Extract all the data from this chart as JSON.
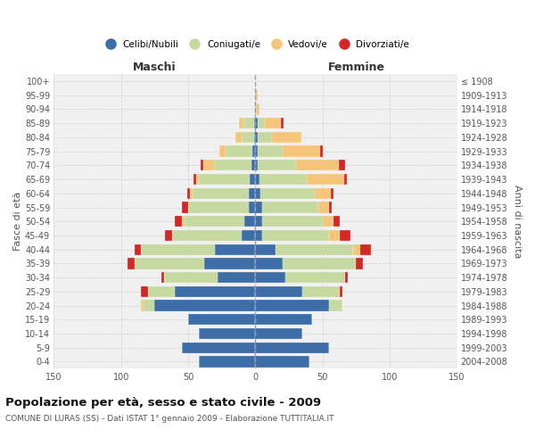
{
  "age_groups": [
    "0-4",
    "5-9",
    "10-14",
    "15-19",
    "20-24",
    "25-29",
    "30-34",
    "35-39",
    "40-44",
    "45-49",
    "50-54",
    "55-59",
    "60-64",
    "65-69",
    "70-74",
    "75-79",
    "80-84",
    "85-89",
    "90-94",
    "95-99",
    "100+"
  ],
  "birth_years": [
    "2004-2008",
    "1999-2003",
    "1994-1998",
    "1989-1993",
    "1984-1988",
    "1979-1983",
    "1974-1978",
    "1969-1973",
    "1964-1968",
    "1959-1963",
    "1954-1958",
    "1949-1953",
    "1944-1948",
    "1939-1943",
    "1934-1938",
    "1929-1933",
    "1924-1928",
    "1919-1923",
    "1914-1918",
    "1909-1913",
    "≤ 1908"
  ],
  "male_celibi": [
    42,
    55,
    42,
    50,
    75,
    60,
    28,
    38,
    30,
    10,
    8,
    5,
    5,
    4,
    3,
    2,
    1,
    1,
    0,
    0,
    0
  ],
  "male_coniugati": [
    0,
    0,
    0,
    0,
    8,
    20,
    40,
    52,
    55,
    52,
    45,
    45,
    42,
    38,
    28,
    20,
    9,
    8,
    1,
    0,
    0
  ],
  "male_vedovi": [
    0,
    0,
    0,
    0,
    2,
    0,
    0,
    0,
    0,
    0,
    2,
    0,
    2,
    2,
    8,
    5,
    5,
    3,
    0,
    0,
    0
  ],
  "male_divorziati": [
    0,
    0,
    0,
    0,
    0,
    5,
    2,
    5,
    5,
    5,
    5,
    5,
    2,
    2,
    2,
    0,
    0,
    0,
    0,
    0,
    0
  ],
  "fem_nubili": [
    40,
    55,
    35,
    42,
    55,
    35,
    22,
    20,
    15,
    5,
    5,
    5,
    4,
    3,
    2,
    2,
    2,
    2,
    0,
    0,
    0
  ],
  "fem_coniugate": [
    0,
    0,
    0,
    0,
    10,
    28,
    45,
    55,
    58,
    50,
    45,
    42,
    40,
    35,
    28,
    18,
    10,
    5,
    1,
    0,
    0
  ],
  "fem_vedove": [
    0,
    0,
    0,
    0,
    0,
    0,
    0,
    0,
    5,
    8,
    8,
    8,
    12,
    28,
    32,
    28,
    22,
    12,
    2,
    2,
    0
  ],
  "fem_divorziate": [
    0,
    0,
    0,
    0,
    0,
    2,
    2,
    5,
    8,
    8,
    5,
    2,
    2,
    2,
    5,
    2,
    0,
    2,
    0,
    0,
    0
  ],
  "c_celibi": "#3d6ea8",
  "c_coniugati": "#c5d9a0",
  "c_vedovi": "#f5c57a",
  "c_divorziati": "#d62728",
  "title": "Popolazione per età, sesso e stato civile - 2009",
  "subtitle": "COMUNE DI LURAS (SS) - Dati ISTAT 1° gennaio 2009 - Elaborazione TUTTITALIA.IT",
  "header_left": "Maschi",
  "header_right": "Femmine",
  "ylabel_left": "Fasce di età",
  "ylabel_right": "Anni di nascita",
  "xlim": 150,
  "legend_labels": [
    "Celibi/Nubili",
    "Coniugati/e",
    "Vedovi/e",
    "Divorziati/e"
  ],
  "bg_color": "#ffffff",
  "plot_bg": "#f0f0f0",
  "grid_color": "#d0d0d0"
}
